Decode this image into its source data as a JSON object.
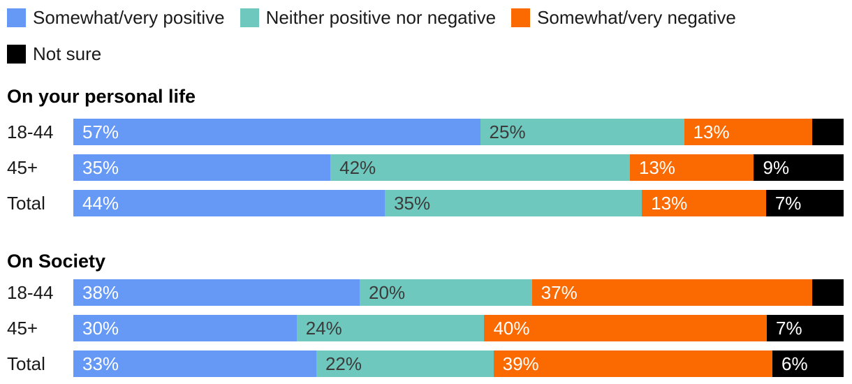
{
  "colors": {
    "positive": "#6699F5",
    "neutral": "#6EC8BD",
    "negative": "#FB6A00",
    "not_sure": "#000000",
    "label_on_dark_segment": "#FFFFFF",
    "label_on_light_segment": "#3B3B3B",
    "text": "#1A1A1A"
  },
  "legend": {
    "rows": [
      [
        {
          "key": "positive",
          "label": "Somewhat/very positive",
          "color": "#6699F5"
        },
        {
          "key": "neutral",
          "label": "Neither positive nor negative",
          "color": "#6EC8BD"
        },
        {
          "key": "negative",
          "label": "Somewhat/very negative",
          "color": "#FB6A00"
        }
      ],
      [
        {
          "key": "not-sure",
          "label": "Not sure",
          "color": "#000000"
        }
      ]
    ]
  },
  "chart_data": {
    "type": "bar",
    "orientation": "horizontal",
    "stacked": true,
    "unit": "%",
    "series": [
      "Somewhat/very positive",
      "Neither positive nor negative",
      "Somewhat/very negative",
      "Not sure"
    ],
    "series_keys": [
      "positive",
      "neutral",
      "negative",
      "not-sure"
    ],
    "series_colors": [
      "#6699F5",
      "#6EC8BD",
      "#FB6A00",
      "#000000"
    ],
    "series_label_colors": [
      "#FFFFFF",
      "#3B3B3B",
      "#FFFFFF",
      "#FFFFFF"
    ],
    "sections": [
      {
        "title": "On your personal life",
        "rows": [
          {
            "label": "18-44",
            "values": [
              57,
              25,
              13,
              5
            ],
            "value_labels": [
              "57%",
              "25%",
              "13%",
              ""
            ]
          },
          {
            "label": "45+",
            "values": [
              35,
              42,
              13,
              9
            ],
            "value_labels": [
              "35%",
              "42%",
              "13%",
              "9%"
            ]
          },
          {
            "label": "Total",
            "values": [
              44,
              35,
              13,
              7
            ],
            "value_labels": [
              "44%",
              "35%",
              "13%",
              "7%"
            ]
          }
        ]
      },
      {
        "title": "On Society",
        "rows": [
          {
            "label": "18-44",
            "values": [
              38,
              20,
              37,
              5
            ],
            "value_labels": [
              "38%",
              "20%",
              "37%",
              ""
            ]
          },
          {
            "label": "45+",
            "values": [
              30,
              24,
              40,
              7
            ],
            "value_labels": [
              "30%",
              "24%",
              "40%",
              "7%"
            ]
          },
          {
            "label": "Total",
            "values": [
              33,
              22,
              39,
              6
            ],
            "value_labels": [
              "33%",
              "22%",
              "39%",
              "6%"
            ]
          }
        ]
      }
    ]
  }
}
